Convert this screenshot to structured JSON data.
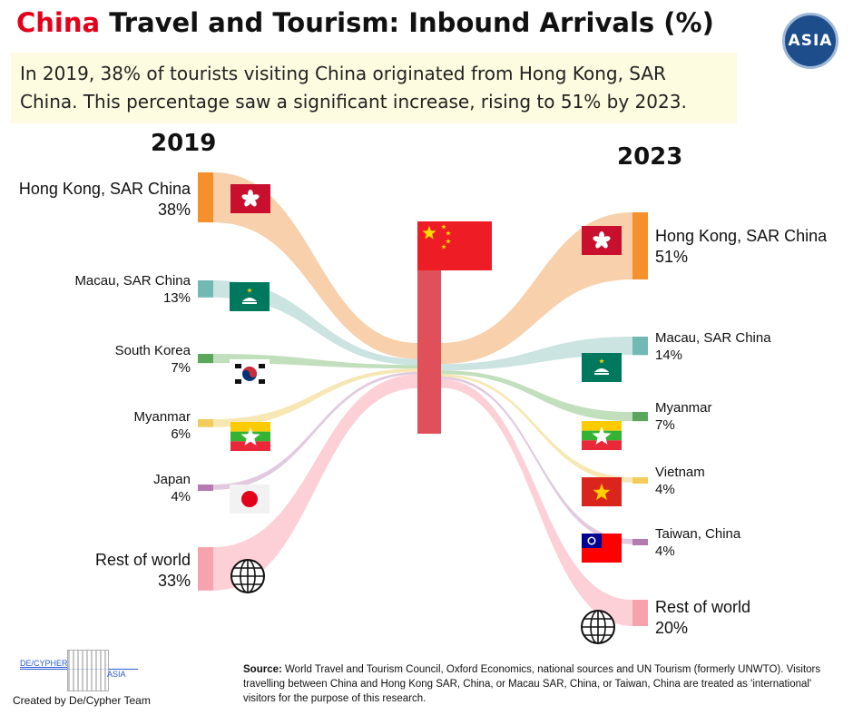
{
  "header": {
    "title_accent": "China",
    "title_rest": " Travel and Tourism: Inbound Arrivals (%)",
    "subtitle": "In 2019, 38% of tourists visiting China originated from Hong Kong, SAR China. This percentage saw a significant increase, rising to 51% by 2023.",
    "badge": "ASIA"
  },
  "years": {
    "left": "2019",
    "right": "2023"
  },
  "chart_data": {
    "type": "sankey",
    "center": "China",
    "left": [
      {
        "name": "Hong Kong, SAR China",
        "pct": "38%",
        "value": 38,
        "color": "#f5902c",
        "flow": "#f7c89c",
        "icon": "hong-kong-flag-icon"
      },
      {
        "name": "Macau, SAR China",
        "pct": "13%",
        "value": 13,
        "color": "#72b9b4",
        "flow": "#c2dedc",
        "icon": "macau-flag-icon"
      },
      {
        "name": "South Korea",
        "pct": "7%",
        "value": 7,
        "color": "#5aa65a",
        "flow": "#b7d9b1",
        "icon": "south-korea-flag-icon"
      },
      {
        "name": "Myanmar",
        "pct": "6%",
        "value": 6,
        "color": "#f2cc5a",
        "flow": "#f6e3a6",
        "icon": "myanmar-flag-icon"
      },
      {
        "name": "Japan",
        "pct": "4%",
        "value": 4,
        "color": "#b67ab0",
        "flow": "#dcc1d9",
        "icon": "japan-flag-icon"
      },
      {
        "name": "Rest of world",
        "pct": "33%",
        "value": 33,
        "color": "#f7a3ad",
        "flow": "#fcc8cf",
        "icon": "globe-icon"
      }
    ],
    "right": [
      {
        "name": "Hong Kong, SAR China",
        "pct": "51%",
        "value": 51,
        "color": "#f5902c",
        "flow": "#f7c89c",
        "icon": "hong-kong-flag-icon"
      },
      {
        "name": "Macau, SAR China",
        "pct": "14%",
        "value": 14,
        "color": "#72b9b4",
        "flow": "#c2dedc",
        "icon": "macau-flag-icon"
      },
      {
        "name": "Myanmar",
        "pct": "7%",
        "value": 7,
        "color": "#5aa65a",
        "flow": "#b7d9b1",
        "icon": "myanmar-flag-icon"
      },
      {
        "name": "Vietnam",
        "pct": "4%",
        "value": 4,
        "color": "#f2cc5a",
        "flow": "#f6e3a6",
        "icon": "vietnam-flag-icon"
      },
      {
        "name": "Taiwan, China",
        "pct": "4%",
        "value": 4,
        "color": "#b67ab0",
        "flow": "#dcc1d9",
        "icon": "taiwan-flag-icon"
      },
      {
        "name": "Rest of world",
        "pct": "20%",
        "value": 20,
        "color": "#f7a3ad",
        "flow": "#fcc8cf",
        "icon": "globe-icon"
      }
    ],
    "center_color": "#e0505a"
  },
  "footer": {
    "source_label": "Source:",
    "source_text": " World Travel and Tourism Council, Oxford Economics, national sources and UN Tourism (formerly UNWTO). Visitors travelling between China and Hong Kong SAR, China, or Macau SAR, China, or Taiwan, China are treated as 'international' visitors for the purpose of this research.",
    "team": "Created by De/Cypher Team",
    "logo_left": "DE/CYPHER",
    "logo_right": "ASIA"
  }
}
